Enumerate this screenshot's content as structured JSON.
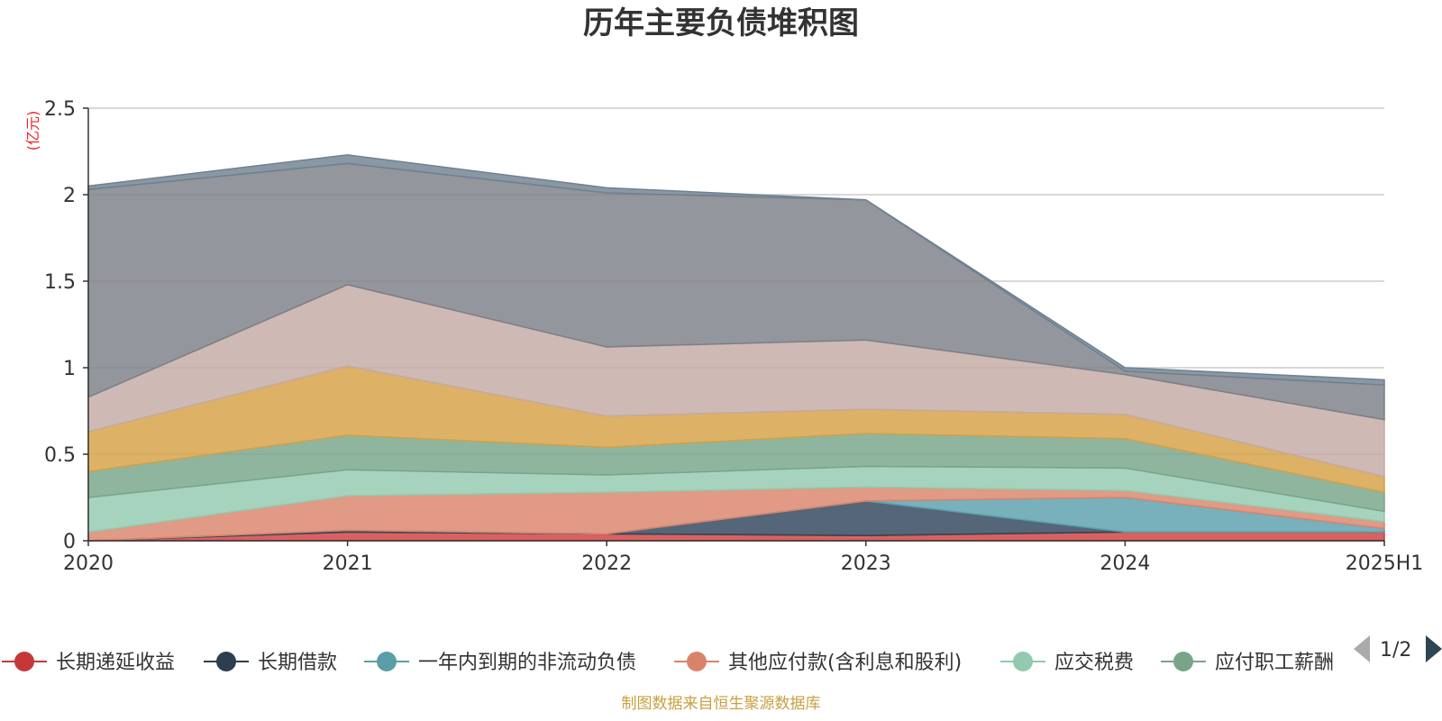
{
  "chart_data": {
    "type": "area",
    "stacked": true,
    "title": "历年主要负债堆积图",
    "unit_label": "(亿元)",
    "categories": [
      "2020",
      "2021",
      "2022",
      "2023",
      "2024",
      "2025H1"
    ],
    "ylim": [
      0,
      2.5
    ],
    "yticks": [
      0,
      0.5,
      1,
      1.5,
      2,
      2.5
    ],
    "ytick_labels": [
      "0",
      "0.5",
      "1",
      "1.5",
      "2",
      "2.5"
    ],
    "grid": true,
    "legend_position": "bottom",
    "series": [
      {
        "name": "长期递延收益",
        "color": "#d0403e",
        "values": [
          0,
          0.05,
          0.04,
          0.03,
          0.05,
          0.05
        ]
      },
      {
        "name": "长期借款",
        "color": "#2e4459",
        "values": [
          0,
          0.01,
          0,
          0.2,
          0,
          0
        ]
      },
      {
        "name": "一年内到期的非流动负债",
        "color": "#5a9fad",
        "values": [
          0,
          0,
          0,
          0,
          0.2,
          0.02
        ]
      },
      {
        "name": "其他应付款(含利息和股利)",
        "color": "#d9846a",
        "values": [
          0.05,
          0.2,
          0.24,
          0.08,
          0.04,
          0.04
        ]
      },
      {
        "name": "应交税费",
        "color": "#93c9ae",
        "values": [
          0.2,
          0.15,
          0.1,
          0.12,
          0.13,
          0.06
        ]
      },
      {
        "name": "应付职工薪酬",
        "color": "#78a58a",
        "values": [
          0.15,
          0.2,
          0.16,
          0.19,
          0.17,
          0.11
        ]
      },
      {
        "name": "",
        "color": "#d5a145",
        "values": [
          0.23,
          0.4,
          0.18,
          0.14,
          0.14,
          0.09
        ]
      },
      {
        "name": "",
        "color": "#c4aaa3",
        "values": [
          0.2,
          0.47,
          0.4,
          0.4,
          0.23,
          0.33
        ]
      },
      {
        "name": "",
        "color": "#7c7f87",
        "values": [
          1.2,
          0.7,
          0.89,
          0.81,
          0.02,
          0.2
        ]
      },
      {
        "name": "",
        "color": "#6f8190",
        "values": [
          0.02,
          0.05,
          0.03,
          0,
          0.02,
          0.03
        ]
      }
    ]
  },
  "legend": {
    "visible_items": [
      {
        "label": "长期递延收益",
        "color": "#c4383a"
      },
      {
        "label": "长期借款",
        "color": "#2c3e50"
      },
      {
        "label": "一年内到期的非流动负债",
        "color": "#5b9ea8"
      },
      {
        "label": "其他应付款(含利息和股利)",
        "color": "#d9846a"
      },
      {
        "label": "应交税费",
        "color": "#93c9ae"
      },
      {
        "label": "应付职工薪酬",
        "color": "#78a58a"
      }
    ],
    "page_text": "1/2"
  },
  "source_text": "制图数据来自恒生聚源数据库"
}
